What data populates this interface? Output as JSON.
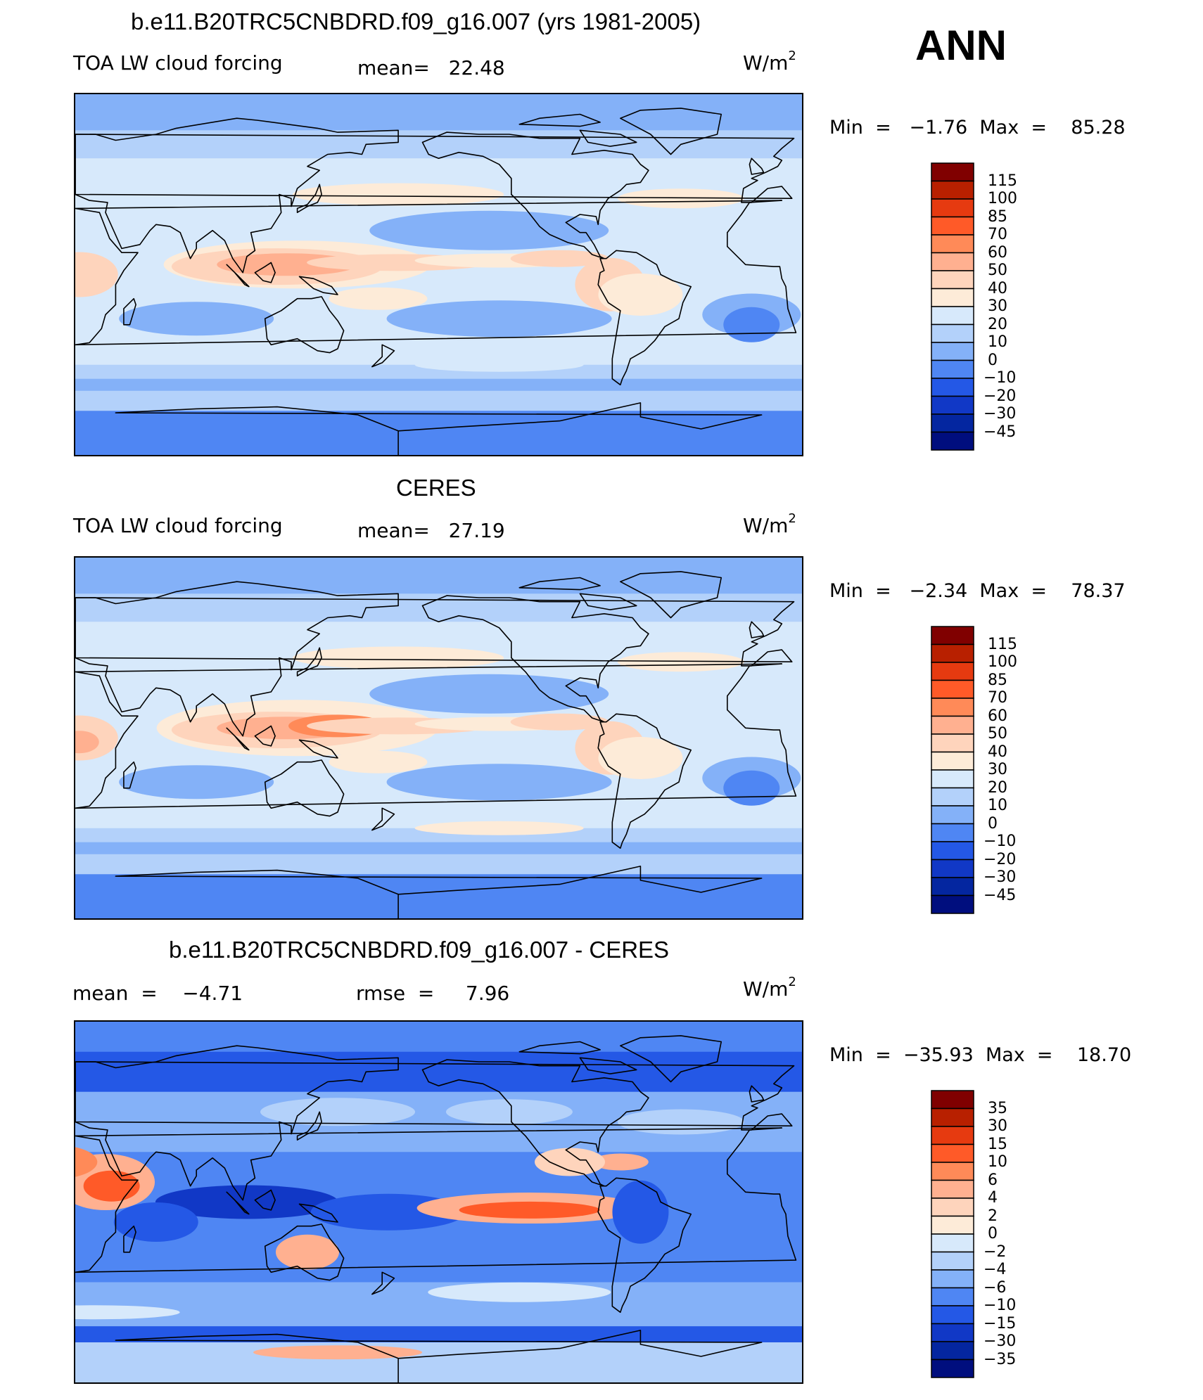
{
  "header": {
    "season": "ANN"
  },
  "panels": [
    {
      "title": "b.e11.B20TRC5CNBDRD.f09_g16.007 (yrs 1981-2005)",
      "left_label": "TOA LW cloud forcing",
      "mid_label": "mean=   22.48",
      "units": "W/m",
      "units_sup": "2",
      "minmax": "Min  =   −1.76  Max  =    85.28",
      "colorbar_labels": [
        "115",
        "100",
        "85",
        "70",
        "60",
        "50",
        "40",
        "30",
        "20",
        "10",
        "0",
        "−10",
        "−20",
        "−30",
        "−45"
      ],
      "field": "model"
    },
    {
      "title": "CERES",
      "left_label": "TOA LW cloud forcing",
      "mid_label": "mean=   27.19",
      "units": "W/m",
      "units_sup": "2",
      "minmax": "Min  =   −2.34  Max  =    78.37",
      "colorbar_labels": [
        "115",
        "100",
        "85",
        "70",
        "60",
        "50",
        "40",
        "30",
        "20",
        "10",
        "0",
        "−10",
        "−20",
        "−30",
        "−45"
      ],
      "field": "obs"
    },
    {
      "title": "b.e11.B20TRC5CNBDRD.f09_g16.007 - CERES",
      "left_label": "mean  =    −4.71",
      "mid_label": "rmse  =     7.96",
      "units": "W/m",
      "units_sup": "2",
      "minmax": "Min  =  −35.93  Max  =    18.70",
      "colorbar_labels": [
        "35",
        "30",
        "15",
        "10",
        "6",
        "4",
        "2",
        "0",
        "−2",
        "−4",
        "−6",
        "−10",
        "−15",
        "−30",
        "−35"
      ],
      "field": "diff"
    }
  ],
  "colorbar_colors": [
    "#800000",
    "#b82000",
    "#e63a10",
    "#ff5a28",
    "#ff8a58",
    "#ffb090",
    "#fed4bc",
    "#fdebd8",
    "#d7e9fb",
    "#b3d1fa",
    "#84b1f8",
    "#4f86f3",
    "#2458e6",
    "#1138c6",
    "#0426a0",
    "#000e7e"
  ]
}
